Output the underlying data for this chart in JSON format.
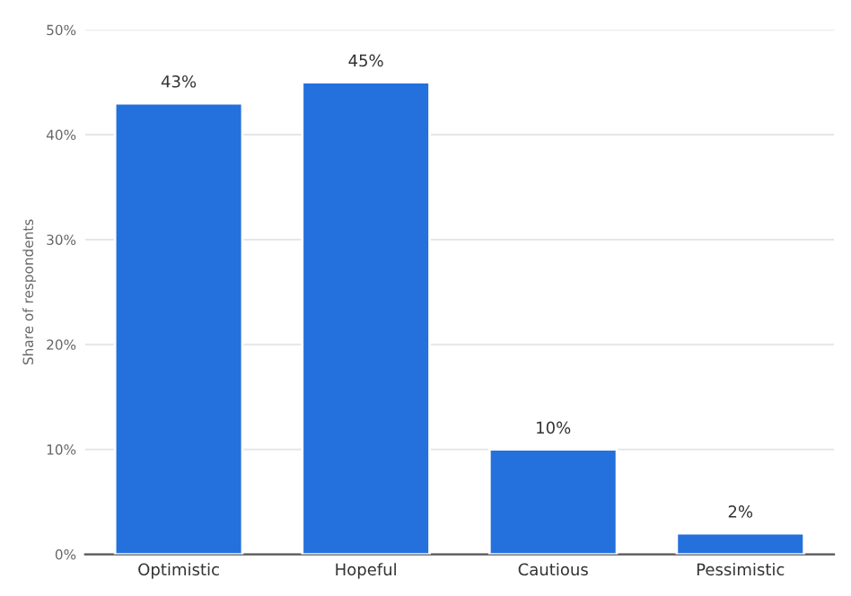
{
  "chart_data": {
    "type": "bar",
    "ylabel": "Share of respondents",
    "categories": [
      "Optimistic",
      "Hopeful",
      "Cautious",
      "Pessimistic"
    ],
    "values": [
      43,
      45,
      10,
      2
    ],
    "value_labels": [
      "43%",
      "45%",
      "10%",
      "2%"
    ],
    "color": "#2470dc",
    "ylim": [
      0,
      50
    ],
    "yticks": [
      {
        "value": 0,
        "label": "0%"
      },
      {
        "value": 10,
        "label": "10%"
      },
      {
        "value": 20,
        "label": "20%"
      },
      {
        "value": 30,
        "label": "30%"
      },
      {
        "value": 40,
        "label": "40%"
      },
      {
        "value": 50,
        "label": "50%"
      }
    ],
    "grid": "y"
  }
}
